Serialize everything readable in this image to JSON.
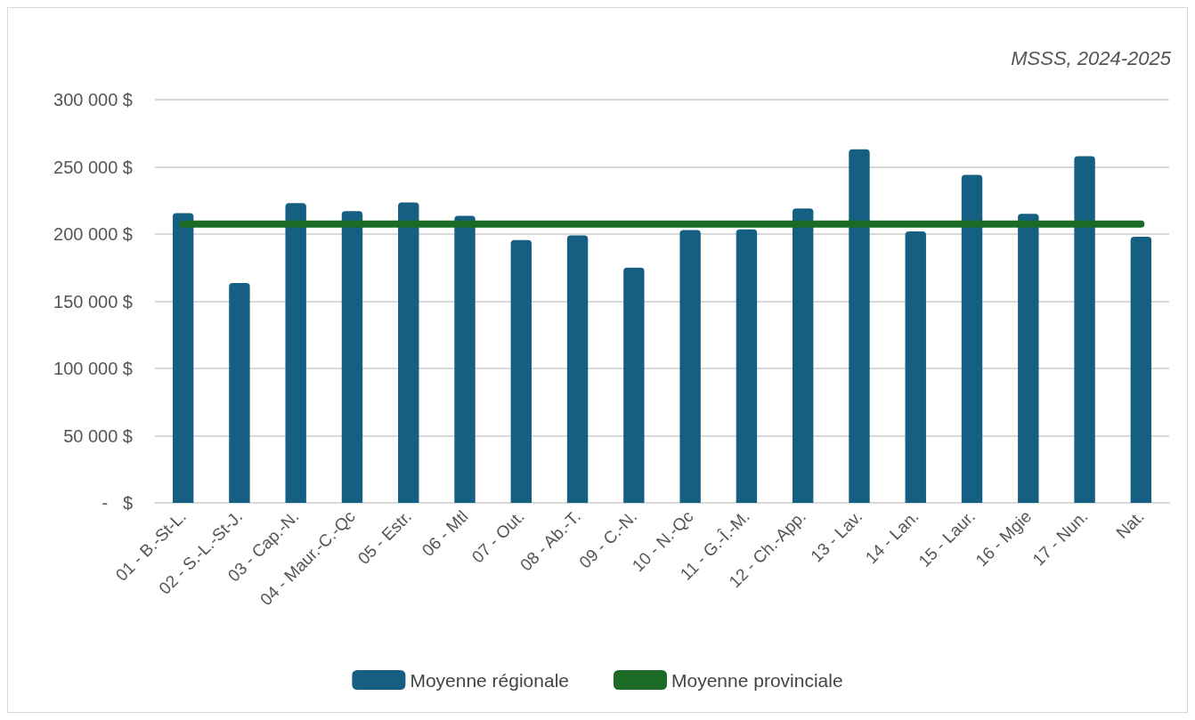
{
  "chart_data": {
    "type": "bar",
    "annotations": [
      "MSSS, 2024-2025"
    ],
    "categories": [
      "01 - B.-St-L.",
      "02 - S.-L.-St-J.",
      "03 - Cap.-N.",
      "04 - Maur.-C.-Qc",
      "05 - Estr.",
      "06 - Mtl",
      "07 - Out.",
      "08 - Ab.-T.",
      "09 - C.-N.",
      "10 - N.-Qc",
      "11 - G.-Î.-M.",
      "12 - Ch.-App.",
      "13 - Lav.",
      "14 - Lan.",
      "15 - Laur.",
      "16 - Mgie",
      "17 - Nun.",
      "Nat."
    ],
    "series": [
      {
        "name": "Moyenne régionale",
        "color": "#155f82",
        "values": [
          215500,
          163500,
          223000,
          217000,
          223500,
          213500,
          195500,
          199000,
          175000,
          203000,
          203500,
          219000,
          263000,
          202000,
          244000,
          215000,
          258000,
          198000
        ]
      },
      {
        "name": "Moyenne provinciale",
        "type": "line",
        "color": "#1b6b26",
        "values": [
          207500,
          207500,
          207500,
          207500,
          207500,
          207500,
          207500,
          207500,
          207500,
          207500,
          207500,
          207500,
          207500,
          207500,
          207500,
          207500,
          207500,
          207500
        ]
      }
    ],
    "ylim": [
      0,
      300000
    ],
    "yticks": [
      {
        "value": 0,
        "label": "-   $"
      },
      {
        "value": 50000,
        "label": "50 000 $"
      },
      {
        "value": 100000,
        "label": "100 000 $"
      },
      {
        "value": 150000,
        "label": "150 000 $"
      },
      {
        "value": 200000,
        "label": "200 000 $"
      },
      {
        "value": 250000,
        "label": "250 000 $"
      },
      {
        "value": 300000,
        "label": "300 000 $"
      }
    ],
    "grid": "y",
    "legend": "bottom",
    "marker": "none",
    "line_style": "solid"
  }
}
